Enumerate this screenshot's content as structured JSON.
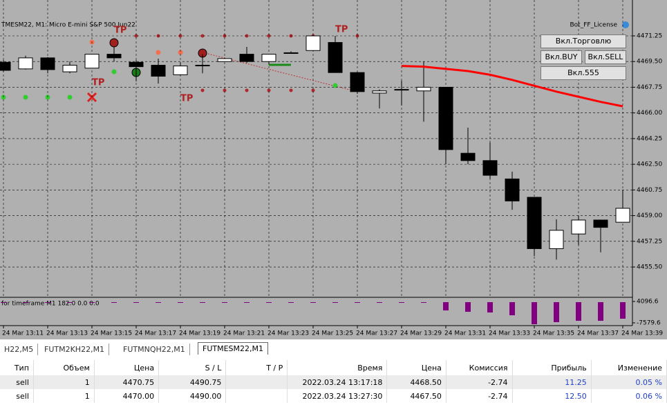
{
  "window": {
    "symbol_label": "TMESM22, M1:  Micro E-mini S&P 500 Jun22",
    "license_label": "Bot_FF_License",
    "buttons": [
      "Вкл.Торговлю",
      "Вкл.BUY",
      "Вкл.SELL",
      "Вкл.555"
    ],
    "tp_label": "TP"
  },
  "chart_data": {
    "type": "candlestick",
    "categories": [
      "24 Mar 13:11",
      null,
      "24 Mar 13:13",
      null,
      "24 Mar 13:15",
      null,
      "24 Mar 13:17",
      null,
      "24 Mar 13:19",
      null,
      "24 Mar 13:21",
      null,
      "24 Mar 13:23",
      null,
      "24 Mar 13:25",
      null,
      "24 Mar 13:27",
      null,
      "24 Mar 13:29",
      null,
      "24 Mar 13:31",
      null,
      "24 Mar 13:33",
      null,
      "24 Mar 13:35",
      null,
      "24 Mar 13:37",
      null,
      "24 Mar 13:39"
    ],
    "open": [
      4469.45,
      4469.0,
      4469.75,
      4468.8,
      4469.05,
      4470.0,
      4469.45,
      4469.25,
      4468.6,
      4469.25,
      4469.5,
      4470.0,
      4469.5,
      4470.1,
      4470.25,
      4470.8,
      4468.75,
      4467.35,
      4467.6,
      4467.5,
      4467.75,
      4463.25,
      4462.75,
      4461.5,
      4460.25,
      4456.75,
      4457.75,
      4458.7,
      4458.55
    ],
    "high": [
      4469.6,
      4469.9,
      4469.8,
      4469.5,
      4470.0,
      4470.5,
      4469.6,
      4469.7,
      4469.45,
      4470.0,
      4469.75,
      4470.5,
      4470.0,
      4470.2,
      4471.3,
      4471.25,
      4468.8,
      4467.6,
      4468.2,
      4469.5,
      4467.75,
      4465.0,
      4464.0,
      4462.0,
      4460.25,
      4458.75,
      4459.0,
      4458.7,
      4460.75
    ],
    "low": [
      4468.8,
      4468.95,
      4468.7,
      4468.7,
      4469.05,
      4469.5,
      4468.15,
      4468.0,
      4468.55,
      4468.7,
      4469.5,
      4469.4,
      4469.3,
      4470.05,
      4470.25,
      4468.75,
      4467.3,
      4466.3,
      4466.5,
      4465.4,
      4462.5,
      4462.5,
      4461.5,
      4459.4,
      4456.25,
      4456.0,
      4457.0,
      4456.5,
      4458.55
    ],
    "close": [
      4468.9,
      4469.75,
      4468.95,
      4469.25,
      4470.0,
      4469.75,
      4469.15,
      4468.5,
      4469.2,
      4469.25,
      4469.7,
      4469.5,
      4470.0,
      4470.1,
      4471.25,
      4468.75,
      4467.45,
      4467.5,
      4467.6,
      4467.75,
      4463.5,
      4462.75,
      4461.75,
      4460.0,
      4456.75,
      4458.0,
      4458.7,
      4458.2,
      4459.5
    ],
    "ma": {
      "color": "#ff0000",
      "values": [
        null,
        null,
        null,
        null,
        null,
        null,
        null,
        null,
        null,
        null,
        null,
        null,
        null,
        null,
        null,
        null,
        null,
        null,
        4469.2,
        4469.15,
        4469.0,
        4468.85,
        4468.6,
        4468.25,
        4467.85,
        4467.45,
        4467.1,
        4466.75,
        4466.45
      ]
    },
    "ylim": [
      4453.48,
      4472.66
    ],
    "yticks": [
      4471.25,
      {
        "value": 4469.5,
        "label": "4469.50"
      },
      4467.75,
      {
        "value": 4466,
        "label": "4466.00"
      },
      4464.25,
      {
        "value": 4462.5,
        "label": "4462.50"
      },
      4460.75,
      {
        "value": 4459,
        "label": "4459.00"
      },
      4457.25,
      {
        "value": 4455.5,
        "label": "4455.50"
      }
    ],
    "grid": true,
    "indicator": {
      "label": "for timeframe M1 182.0 0.0 0.0",
      "color": "#800080",
      "values": [
        3350,
        3350,
        3350,
        3350,
        3350,
        3350,
        3350,
        3350,
        3350,
        3350,
        3350,
        3350,
        3350,
        3350,
        3350,
        3350,
        3350,
        3350,
        3350,
        3350,
        -800,
        -1550,
        -1930,
        -3440,
        -8330,
        -7200,
        -6450,
        -6450,
        -5320
      ],
      "ylim": [
        -7579.6,
        4096.6
      ],
      "yticks": [
        4096.6,
        -7579.6
      ]
    }
  },
  "tabs": [
    "H22,M5",
    "FUTM2KH22,M1",
    "FUTMNQH22,M1",
    "FUTMESM22,M1"
  ],
  "table": {
    "columns": [
      "Тип",
      "Объем",
      "Цена",
      "S / L",
      "T / P",
      "Время",
      "Цена",
      "Комиссия",
      "Прибыль",
      "Изменение"
    ],
    "rows": [
      [
        "sell",
        "1",
        "4470.75",
        "4490.75",
        "",
        "2022.03.24 13:17:18",
        "4468.50",
        "-2.74",
        "11.25",
        "0.05 %"
      ],
      [
        "sell",
        "1",
        "4470.00",
        "4490.00",
        "",
        "2022.03.24 13:27:30",
        "4467.50",
        "-2.74",
        "12.50",
        "0.06 %"
      ]
    ]
  }
}
